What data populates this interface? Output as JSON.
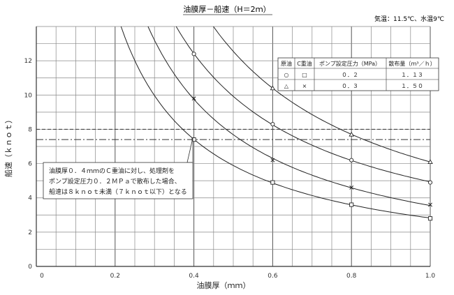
{
  "chart_data": {
    "type": "line",
    "title": "油膜厚－船速（H＝2ｍ）",
    "conditions": "気温：11.5℃、水温9℃",
    "xlabel": "油膜厚（ｍｍ）",
    "ylabel": "船速（ｋｎｏｔ）",
    "xlim": [
      0,
      1.0
    ],
    "ylim": [
      0,
      14
    ],
    "xticks": [
      "0",
      "0.2",
      "0.4",
      "0.6",
      "0.8",
      "1.0"
    ],
    "yticks": [
      "0",
      "2",
      "4",
      "6",
      "8",
      "10",
      "12"
    ],
    "grid": true,
    "series": [
      {
        "marker": "○",
        "x": [
          0.4,
          0.6,
          0.8,
          1.0
        ],
        "y": [
          12.4,
          8.3,
          6.2,
          4.9
        ]
      },
      {
        "marker": "□",
        "x": [
          0.4,
          0.6,
          0.8,
          1.0
        ],
        "y": [
          7.4,
          4.9,
          3.6,
          2.8
        ]
      },
      {
        "marker": "△",
        "x": [
          0.6,
          0.8,
          1.0
        ],
        "y": [
          10.4,
          7.7,
          6.1
        ]
      },
      {
        "marker": "×",
        "x": [
          0.4,
          0.6,
          0.8,
          1.0
        ],
        "y": [
          9.8,
          6.2,
          4.6,
          3.6
        ]
      }
    ],
    "reference_lines": [
      {
        "y": 8.0,
        "style": "dashed"
      },
      {
        "y": 7.4,
        "style": "dash-dot"
      }
    ],
    "legend": {
      "headers": [
        "原油",
        "C重油",
        "ポンプ設定圧力（MPa）",
        "散布量（ｍ³／ｈ）"
      ],
      "rows": [
        {
          "crude": "○",
          "c_heavy": "□",
          "pressure": "０．２",
          "rate": "１．１３"
        },
        {
          "crude": "△",
          "c_heavy": "×",
          "pressure": "０．３",
          "rate": "１．５０"
        }
      ]
    },
    "annotation": [
      "油膜厚０．４ｍｍのＣ重油に対し、処理剤を",
      "ポンプ設定圧力０．２ＭＰａで散布した場合、",
      "船速は８ｋｎｏｔ未満（７ｋｎｏｔ以下）となる"
    ]
  }
}
